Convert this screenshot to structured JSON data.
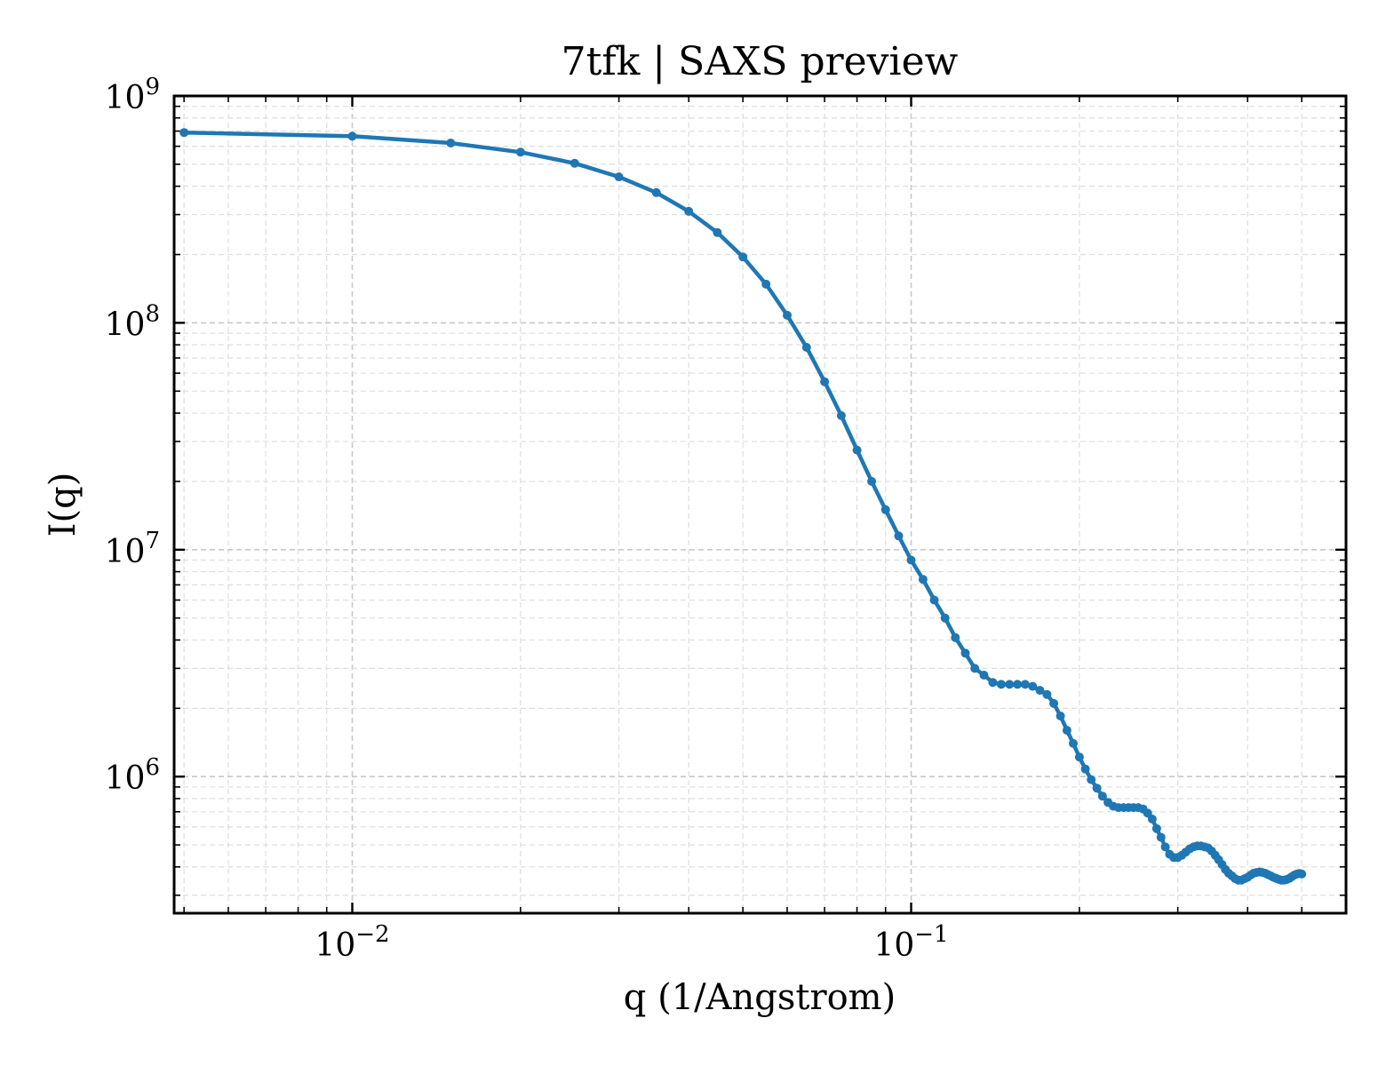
{
  "chart_data": {
    "type": "line",
    "title": "7tfk | SAXS preview",
    "xlabel": "q (1/Angstrom)",
    "ylabel": "I(q)",
    "xscale": "log",
    "yscale": "log",
    "xlim": [
      0.0048,
      0.6
    ],
    "ylim": [
      250000,
      1000000000
    ],
    "grid": true,
    "legend": "none",
    "x_ticks": [
      {
        "value": 0.01,
        "base": "10",
        "exponent": "−2"
      },
      {
        "value": 0.1,
        "base": "10",
        "exponent": "−1"
      }
    ],
    "y_ticks": [
      {
        "value": 1000000,
        "base": "10",
        "exponent": "6"
      },
      {
        "value": 10000000,
        "base": "10",
        "exponent": "7"
      },
      {
        "value": 100000000,
        "base": "10",
        "exponent": "8"
      },
      {
        "value": 1000000000,
        "base": "10",
        "exponent": "9"
      }
    ],
    "series": [
      {
        "color": "#1f77b4",
        "x": [
          0.005,
          0.01,
          0.015,
          0.02,
          0.025,
          0.03,
          0.035,
          0.04,
          0.045,
          0.05,
          0.055,
          0.06,
          0.065,
          0.07,
          0.075,
          0.08,
          0.085,
          0.09,
          0.095,
          0.1,
          0.105,
          0.11,
          0.115,
          0.12,
          0.125,
          0.13,
          0.135,
          0.14,
          0.145,
          0.15,
          0.155,
          0.16,
          0.165,
          0.17,
          0.175,
          0.18,
          0.185,
          0.19,
          0.195,
          0.2,
          0.205,
          0.21,
          0.215,
          0.22,
          0.225,
          0.23,
          0.235,
          0.24,
          0.245,
          0.25,
          0.255,
          0.26,
          0.265,
          0.27,
          0.275,
          0.28,
          0.285,
          0.29,
          0.295,
          0.3,
          0.305,
          0.31,
          0.315,
          0.32,
          0.325,
          0.33,
          0.335,
          0.34,
          0.345,
          0.35,
          0.355,
          0.36,
          0.365,
          0.37,
          0.375,
          0.38,
          0.385,
          0.39,
          0.395,
          0.4,
          0.405,
          0.41,
          0.415,
          0.42,
          0.425,
          0.43,
          0.435,
          0.44,
          0.445,
          0.45,
          0.455,
          0.46,
          0.465,
          0.47,
          0.475,
          0.48,
          0.485,
          0.49,
          0.495,
          0.5
        ],
        "y": [
          690000000,
          665000000,
          620000000,
          565000000,
          505000000,
          440000000,
          375000000,
          310000000,
          250000000,
          195000000,
          148000000,
          108000000,
          78000000,
          55000000,
          39000000,
          27500000,
          20000000,
          15000000,
          11500000,
          9000000,
          7400000,
          6000000,
          5000000,
          4100000,
          3500000,
          3000000,
          2800000,
          2600000,
          2550000,
          2550000,
          2550000,
          2550000,
          2500000,
          2400000,
          2300000,
          2100000,
          1850000,
          1600000,
          1400000,
          1220000,
          1080000,
          970000,
          890000,
          820000,
          770000,
          740000,
          730000,
          730000,
          730000,
          730000,
          730000,
          720000,
          690000,
          650000,
          590000,
          540000,
          490000,
          455000,
          440000,
          440000,
          450000,
          465000,
          480000,
          490000,
          495000,
          495000,
          490000,
          485000,
          470000,
          450000,
          430000,
          410000,
          390000,
          375000,
          365000,
          355000,
          350000,
          350000,
          355000,
          360000,
          368000,
          375000,
          378000,
          380000,
          378000,
          375000,
          370000,
          365000,
          360000,
          356000,
          352000,
          350000,
          350000,
          352000,
          356000,
          362000,
          368000,
          372000,
          374000,
          372000
        ]
      }
    ]
  }
}
